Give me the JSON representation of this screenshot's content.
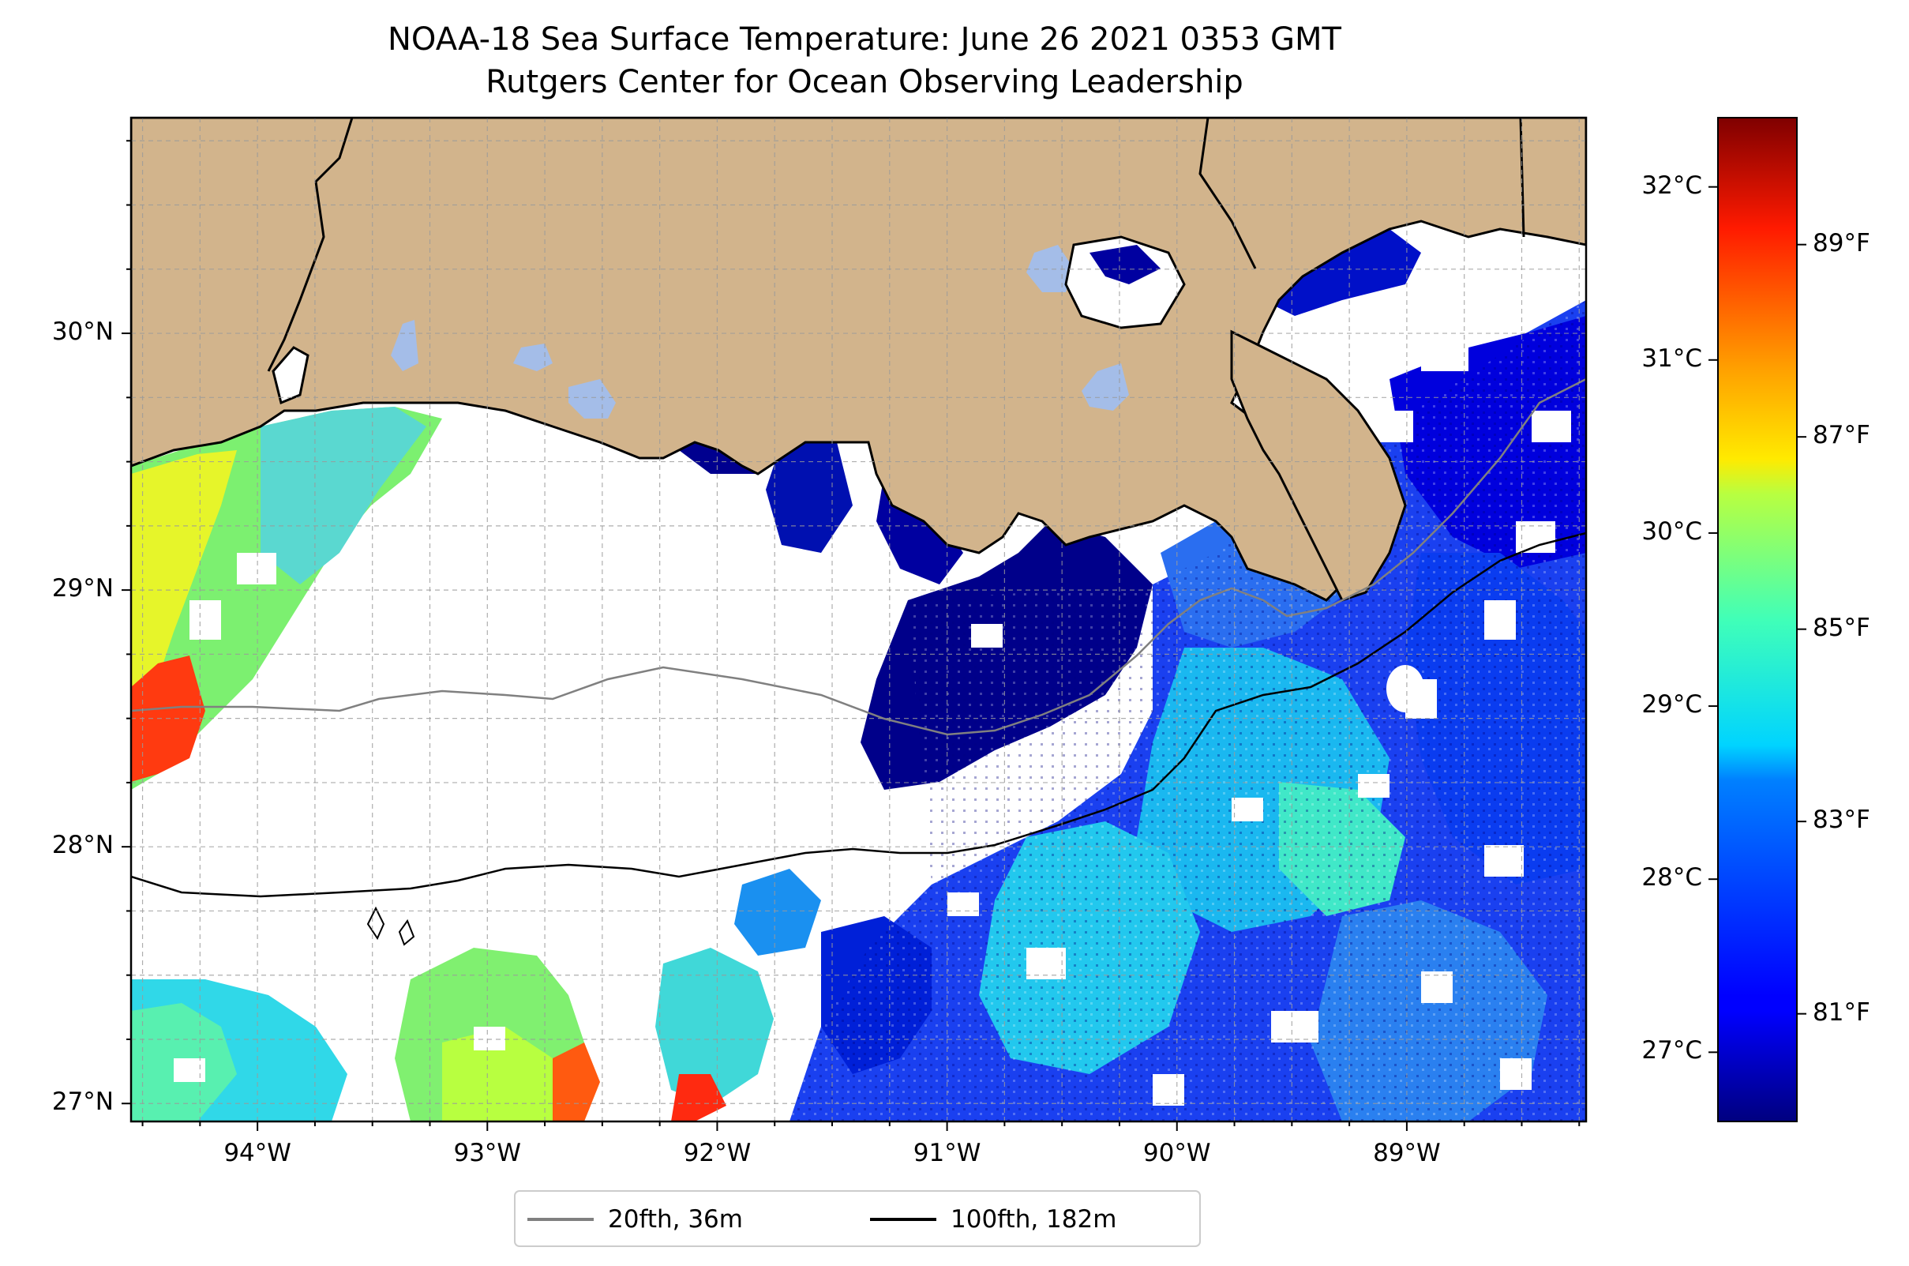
{
  "title": {
    "line1": "NOAA-18 Sea Surface Temperature: June 26 2021 0353 GMT",
    "line2": "Rutgers Center for Ocean Observing Leadership"
  },
  "map": {
    "extent": {
      "lon_min": -94.55,
      "lon_max": -88.22,
      "lat_min": 26.93,
      "lat_max": 30.84
    },
    "land_color": "#d2b48c",
    "no_data_color": "#ffffff",
    "lakes_color": "#a4bde8",
    "gridlines": true,
    "lon_ticks": [
      {
        "value": -94,
        "label": "94°W"
      },
      {
        "value": -93,
        "label": "93°W"
      },
      {
        "value": -92,
        "label": "92°W"
      },
      {
        "value": -91,
        "label": "91°W"
      },
      {
        "value": -90,
        "label": "90°W"
      },
      {
        "value": -89,
        "label": "89°W"
      }
    ],
    "lat_ticks": [
      {
        "value": 27,
        "label": "27°N"
      },
      {
        "value": 28,
        "label": "28°N"
      },
      {
        "value": 29,
        "label": "29°N"
      },
      {
        "value": 30,
        "label": "30°N"
      }
    ]
  },
  "legend": {
    "placement": "bottom-center",
    "items": [
      {
        "label": "20fth, 36m",
        "color": "#808080"
      },
      {
        "label": "100fth, 182m",
        "color": "#000000"
      }
    ]
  },
  "colorbar": {
    "colormap": "jet",
    "range_c": [
      26.6,
      32.4
    ],
    "celsius_ticks": [
      {
        "value": 27,
        "label": "27°C"
      },
      {
        "value": 28,
        "label": "28°C"
      },
      {
        "value": 29,
        "label": "29°C"
      },
      {
        "value": 30,
        "label": "30°C"
      },
      {
        "value": 31,
        "label": "31°C"
      },
      {
        "value": 32,
        "label": "32°C"
      }
    ],
    "fahrenheit_ticks": [
      {
        "value": 81,
        "label": "81°F"
      },
      {
        "value": 83,
        "label": "83°F"
      },
      {
        "value": 85,
        "label": "85°F"
      },
      {
        "value": 87,
        "label": "87°F"
      },
      {
        "value": 89,
        "label": "89°F"
      }
    ]
  }
}
